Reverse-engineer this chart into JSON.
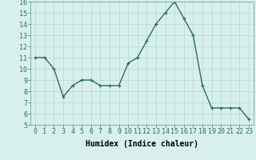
{
  "x": [
    0,
    1,
    2,
    3,
    4,
    5,
    6,
    7,
    8,
    9,
    10,
    11,
    12,
    13,
    14,
    15,
    16,
    17,
    18,
    19,
    20,
    21,
    22,
    23
  ],
  "y": [
    11.0,
    11.0,
    10.0,
    7.5,
    8.5,
    9.0,
    9.0,
    8.5,
    8.5,
    8.5,
    10.5,
    11.0,
    12.5,
    14.0,
    15.0,
    16.0,
    14.5,
    13.0,
    8.5,
    6.5,
    6.5,
    6.5,
    6.5,
    5.5
  ],
  "line_color": "#2e6b5e",
  "marker": "+",
  "bg_color": "#d8f0ec",
  "grid_color": "#b0d8d0",
  "xlabel": "Humidex (Indice chaleur)",
  "xlim_min": -0.5,
  "xlim_max": 23.5,
  "ylim_min": 5,
  "ylim_max": 16,
  "yticks": [
    5,
    6,
    7,
    8,
    9,
    10,
    11,
    12,
    13,
    14,
    15,
    16
  ],
  "xticks": [
    0,
    1,
    2,
    3,
    4,
    5,
    6,
    7,
    8,
    9,
    10,
    11,
    12,
    13,
    14,
    15,
    16,
    17,
    18,
    19,
    20,
    21,
    22,
    23
  ],
  "xtick_labels": [
    "0",
    "1",
    "2",
    "3",
    "4",
    "5",
    "6",
    "7",
    "8",
    "9",
    "10",
    "11",
    "12",
    "13",
    "14",
    "15",
    "16",
    "17",
    "18",
    "19",
    "20",
    "21",
    "22",
    "23"
  ],
  "xlabel_fontsize": 7,
  "tick_fontsize": 6,
  "linewidth": 1.0,
  "markersize": 3,
  "markeredgewidth": 0.9
}
